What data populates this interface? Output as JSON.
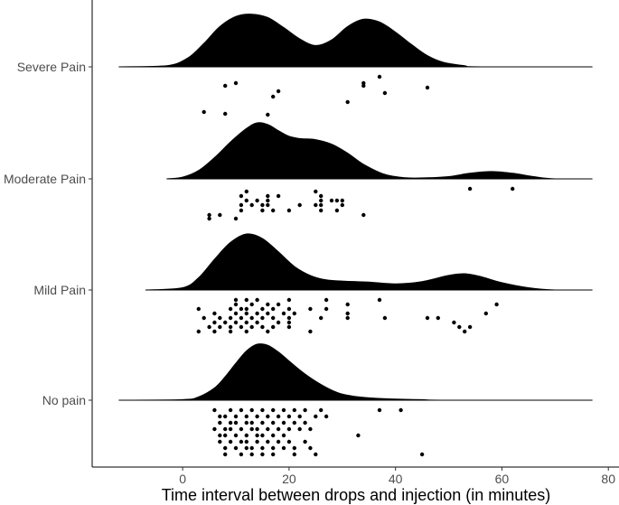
{
  "chart_data": {
    "type": "raincloud",
    "title": "",
    "xlabel": "Time interval between drops and injection (in minutes)",
    "ylabel": "",
    "xlim": [
      -17,
      82
    ],
    "xticks": [
      0,
      20,
      40,
      60,
      80
    ],
    "grid": false,
    "fill_color": "#000000",
    "categories": [
      "No pain",
      "Mild Pain",
      "Moderate Pain",
      "Severe Pain"
    ],
    "series": [
      {
        "name": "No pain",
        "density": {
          "x": [
            -12,
            0,
            3,
            6,
            8,
            10,
            12,
            14,
            16,
            18,
            20,
            22,
            24,
            26,
            28,
            30,
            33,
            36,
            40,
            45,
            50,
            77
          ],
          "y": [
            0,
            0.01,
            0.06,
            0.22,
            0.42,
            0.66,
            0.88,
            1.0,
            0.98,
            0.86,
            0.7,
            0.54,
            0.4,
            0.28,
            0.18,
            0.11,
            0.06,
            0.035,
            0.02,
            0.01,
            0,
            0
          ]
        },
        "points": [
          [
            6,
            0.05
          ],
          [
            9,
            0.05
          ],
          [
            11,
            0.05
          ],
          [
            13,
            0.05
          ],
          [
            15,
            0.05
          ],
          [
            17,
            0.05
          ],
          [
            19,
            0.05
          ],
          [
            21,
            0.05
          ],
          [
            23,
            0.05
          ],
          [
            26,
            0.05
          ],
          [
            37,
            0.05
          ],
          [
            41,
            0.05
          ],
          [
            7,
            0.12
          ],
          [
            8,
            0.12
          ],
          [
            10,
            0.12
          ],
          [
            12,
            0.12
          ],
          [
            14,
            0.12
          ],
          [
            16,
            0.12
          ],
          [
            18,
            0.12
          ],
          [
            20,
            0.12
          ],
          [
            22,
            0.12
          ],
          [
            25,
            0.12
          ],
          [
            27,
            0.12
          ],
          [
            7,
            0.19
          ],
          [
            9,
            0.19
          ],
          [
            10,
            0.19
          ],
          [
            12,
            0.19
          ],
          [
            13,
            0.19
          ],
          [
            15,
            0.19
          ],
          [
            17,
            0.19
          ],
          [
            19,
            0.19
          ],
          [
            21,
            0.19
          ],
          [
            23,
            0.19
          ],
          [
            6,
            0.26
          ],
          [
            8,
            0.26
          ],
          [
            9,
            0.26
          ],
          [
            11,
            0.26
          ],
          [
            13,
            0.26
          ],
          [
            14,
            0.26
          ],
          [
            16,
            0.26
          ],
          [
            18,
            0.26
          ],
          [
            20,
            0.26
          ],
          [
            22,
            0.26
          ],
          [
            24,
            0.26
          ],
          [
            7,
            0.33
          ],
          [
            8,
            0.33
          ],
          [
            10,
            0.33
          ],
          [
            12,
            0.33
          ],
          [
            14,
            0.33
          ],
          [
            15,
            0.33
          ],
          [
            17,
            0.33
          ],
          [
            19,
            0.33
          ],
          [
            33,
            0.33
          ],
          [
            7,
            0.4
          ],
          [
            9,
            0.4
          ],
          [
            11,
            0.4
          ],
          [
            12,
            0.4
          ],
          [
            14,
            0.4
          ],
          [
            16,
            0.4
          ],
          [
            18,
            0.4
          ],
          [
            20,
            0.4
          ],
          [
            23,
            0.4
          ],
          [
            8,
            0.47
          ],
          [
            10,
            0.47
          ],
          [
            12,
            0.47
          ],
          [
            13,
            0.47
          ],
          [
            15,
            0.47
          ],
          [
            17,
            0.47
          ],
          [
            19,
            0.47
          ],
          [
            21,
            0.47
          ],
          [
            24,
            0.47
          ],
          [
            8,
            0.54
          ],
          [
            11,
            0.54
          ],
          [
            13,
            0.54
          ],
          [
            15,
            0.54
          ],
          [
            17,
            0.54
          ],
          [
            21,
            0.54
          ],
          [
            25,
            0.54
          ],
          [
            45,
            0.54
          ]
        ]
      },
      {
        "name": "Mild Pain",
        "density": {
          "x": [
            -7,
            0,
            3,
            6,
            9,
            12,
            15,
            18,
            21,
            24,
            27,
            30,
            35,
            40,
            45,
            50,
            53,
            56,
            60,
            65,
            70,
            77
          ],
          "y": [
            0,
            0.04,
            0.22,
            0.55,
            0.85,
            1.0,
            0.92,
            0.68,
            0.42,
            0.26,
            0.18,
            0.16,
            0.14,
            0.11,
            0.15,
            0.26,
            0.29,
            0.24,
            0.13,
            0.04,
            0,
            0
          ]
        },
        "points": [
          [
            10,
            0.05
          ],
          [
            12,
            0.05
          ],
          [
            14,
            0.05
          ],
          [
            20,
            0.05
          ],
          [
            27,
            0.05
          ],
          [
            37,
            0.05
          ],
          [
            10,
            0.1
          ],
          [
            13,
            0.1
          ],
          [
            16,
            0.1
          ],
          [
            18,
            0.1
          ],
          [
            31,
            0.1
          ],
          [
            59,
            0.1
          ],
          [
            3,
            0.15
          ],
          [
            9,
            0.15
          ],
          [
            11,
            0.15
          ],
          [
            12,
            0.15
          ],
          [
            15,
            0.15
          ],
          [
            17,
            0.15
          ],
          [
            20,
            0.15
          ],
          [
            24,
            0.15
          ],
          [
            27,
            0.15
          ],
          [
            6,
            0.2
          ],
          [
            10,
            0.2
          ],
          [
            12,
            0.2
          ],
          [
            14,
            0.2
          ],
          [
            16,
            0.2
          ],
          [
            19,
            0.2
          ],
          [
            21,
            0.2
          ],
          [
            31,
            0.2
          ],
          [
            57,
            0.2
          ],
          [
            4,
            0.25
          ],
          [
            7,
            0.25
          ],
          [
            9,
            0.25
          ],
          [
            11,
            0.25
          ],
          [
            13,
            0.25
          ],
          [
            15,
            0.25
          ],
          [
            17,
            0.25
          ],
          [
            20,
            0.25
          ],
          [
            26,
            0.25
          ],
          [
            31,
            0.25
          ],
          [
            38,
            0.25
          ],
          [
            46,
            0.25
          ],
          [
            48,
            0.25
          ],
          [
            6,
            0.3
          ],
          [
            8,
            0.3
          ],
          [
            10,
            0.3
          ],
          [
            12,
            0.3
          ],
          [
            14,
            0.3
          ],
          [
            18,
            0.3
          ],
          [
            20,
            0.3
          ],
          [
            51,
            0.3
          ],
          [
            5,
            0.35
          ],
          [
            7,
            0.35
          ],
          [
            9,
            0.35
          ],
          [
            11,
            0.35
          ],
          [
            13,
            0.35
          ],
          [
            15,
            0.35
          ],
          [
            17,
            0.35
          ],
          [
            20,
            0.35
          ],
          [
            52,
            0.35
          ],
          [
            54,
            0.35
          ],
          [
            3,
            0.4
          ],
          [
            6,
            0.4
          ],
          [
            9,
            0.4
          ],
          [
            12,
            0.4
          ],
          [
            16,
            0.4
          ],
          [
            24,
            0.4
          ],
          [
            53,
            0.4
          ]
        ]
      },
      {
        "name": "Moderate Pain",
        "density": {
          "x": [
            -3,
            0,
            3,
            6,
            9,
            12,
            14,
            16,
            18,
            20,
            22,
            25,
            28,
            31,
            34,
            38,
            42,
            46,
            50,
            54,
            58,
            62,
            66,
            70,
            77
          ],
          "y": [
            0,
            0.03,
            0.15,
            0.38,
            0.66,
            0.9,
            1.0,
            0.97,
            0.86,
            0.76,
            0.72,
            0.7,
            0.62,
            0.46,
            0.26,
            0.08,
            0.02,
            0.02,
            0.04,
            0.1,
            0.13,
            0.1,
            0.04,
            0,
            0
          ]
        },
        "points": [
          [
            54,
            0.05
          ],
          [
            62,
            0.05
          ],
          [
            12,
            0.08
          ],
          [
            25,
            0.08
          ],
          [
            11,
            0.13
          ],
          [
            16,
            0.13
          ],
          [
            18,
            0.13
          ],
          [
            26,
            0.13
          ],
          [
            12,
            0.18
          ],
          [
            14,
            0.18
          ],
          [
            16,
            0.18
          ],
          [
            26,
            0.18
          ],
          [
            28,
            0.18
          ],
          [
            29,
            0.18
          ],
          [
            30,
            0.18
          ],
          [
            11,
            0.23
          ],
          [
            13,
            0.23
          ],
          [
            15,
            0.23
          ],
          [
            16,
            0.23
          ],
          [
            22,
            0.23
          ],
          [
            25,
            0.23
          ],
          [
            26,
            0.23
          ],
          [
            30,
            0.23
          ],
          [
            11,
            0.29
          ],
          [
            15,
            0.29
          ],
          [
            17,
            0.29
          ],
          [
            20,
            0.29
          ],
          [
            26,
            0.29
          ],
          [
            29,
            0.29
          ],
          [
            5,
            0.34
          ],
          [
            7,
            0.34
          ],
          [
            34,
            0.34
          ],
          [
            5,
            0.38
          ],
          [
            10,
            0.38
          ]
        ]
      },
      {
        "name": "Severe Pain",
        "density": {
          "x": [
            -12,
            -3,
            1,
            4,
            7,
            10,
            13,
            16,
            19,
            22,
            25,
            28,
            31,
            34,
            37,
            40,
            43,
            46,
            49,
            53,
            56,
            77
          ],
          "y": [
            0,
            0.02,
            0.16,
            0.42,
            0.72,
            0.9,
            0.94,
            0.88,
            0.7,
            0.5,
            0.38,
            0.48,
            0.72,
            0.85,
            0.8,
            0.62,
            0.4,
            0.2,
            0.08,
            0.02,
            0,
            0
          ]
        },
        "points": [
          [
            37,
            0.05
          ],
          [
            10,
            0.12
          ],
          [
            34,
            0.12
          ],
          [
            8,
            0.15
          ],
          [
            34,
            0.15
          ],
          [
            46,
            0.17
          ],
          [
            18,
            0.21
          ],
          [
            38,
            0.23
          ],
          [
            17,
            0.27
          ],
          [
            31,
            0.33
          ],
          [
            4,
            0.44
          ],
          [
            8,
            0.46
          ],
          [
            16,
            0.47
          ]
        ]
      }
    ]
  }
}
